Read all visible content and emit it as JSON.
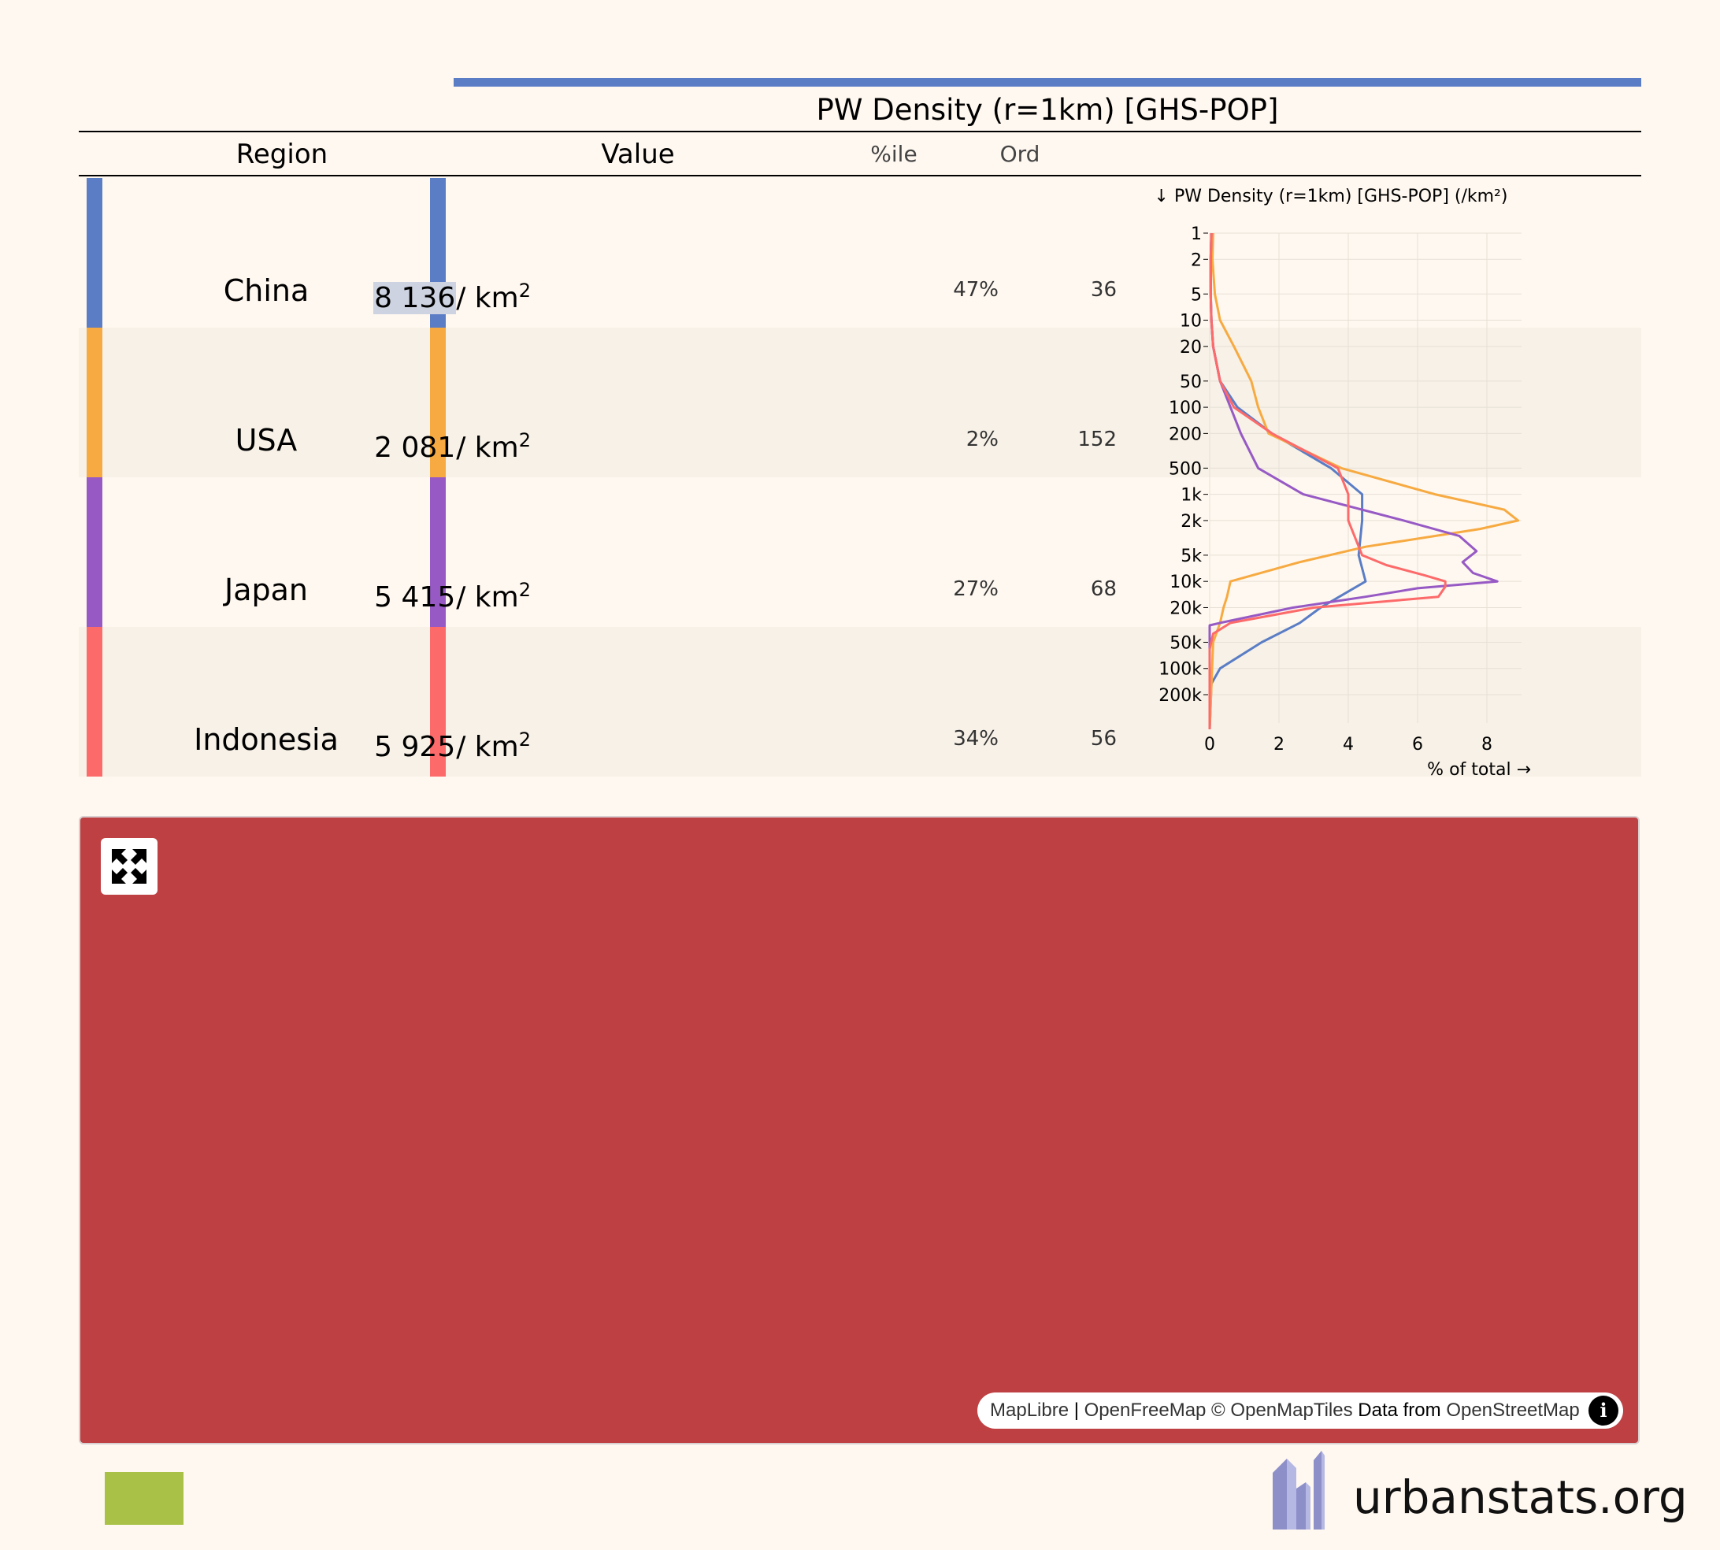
{
  "table": {
    "statistic": "PW Density (r=1km) [GHS-POP]",
    "columns": {
      "region": "Region",
      "value": "Value",
      "percentile": "%ile",
      "ordinal": "Ord"
    },
    "unit": "/ km",
    "unit_exp": "2",
    "rows": [
      {
        "region": "China",
        "value": "8 136",
        "percentile": "47%",
        "ordinal": "36",
        "color": "#5a7dc5",
        "highlighted": true
      },
      {
        "region": "USA",
        "value": "2 081",
        "percentile": "2%",
        "ordinal": "152",
        "color": "#f7aa41",
        "highlighted": false
      },
      {
        "region": "Japan",
        "value": "5 415",
        "percentile": "27%",
        "ordinal": "68",
        "color": "#975ac5",
        "highlighted": false
      },
      {
        "region": "Indonesia",
        "value": "5 925",
        "percentile": "34%",
        "ordinal": "56",
        "color": "#fd6a6a",
        "highlighted": false
      }
    ]
  },
  "chart_data": {
    "type": "line",
    "title": "↓ PW Density (r=1km) [GHS-POP] (/km²)",
    "xlabel": "% of total →",
    "ylabel": "",
    "y_scale": "log",
    "y_reversed": true,
    "xlim": [
      0,
      9
    ],
    "ylim": [
      1,
      500000
    ],
    "x_ticks": [
      0,
      2,
      4,
      6,
      8
    ],
    "y_ticks": [
      1,
      2,
      5,
      10,
      20,
      50,
      100,
      200,
      500,
      1000,
      2000,
      5000,
      10000,
      20000,
      50000,
      100000,
      200000
    ],
    "y_tick_labels": [
      "1",
      "2",
      "5",
      "10",
      "20",
      "50",
      "100",
      "200",
      "500",
      "1k",
      "2k",
      "5k",
      "10k",
      "20k",
      "50k",
      "100k",
      "200k"
    ],
    "grid": true,
    "series": [
      {
        "color": "#5a7dc5",
        "points": [
          [
            0.05,
            1
          ],
          [
            0.03,
            2
          ],
          [
            0.03,
            5
          ],
          [
            0.05,
            10
          ],
          [
            0.1,
            20
          ],
          [
            0.3,
            50
          ],
          [
            0.8,
            100
          ],
          [
            1.8,
            200
          ],
          [
            3.5,
            500
          ],
          [
            4.4,
            1000
          ],
          [
            4.4,
            2000
          ],
          [
            4.3,
            5000
          ],
          [
            4.5,
            10000
          ],
          [
            3.2,
            20000
          ],
          [
            2.6,
            30000
          ],
          [
            1.5,
            50000
          ],
          [
            0.3,
            100000
          ],
          [
            0.05,
            150000
          ],
          [
            0.0,
            500000
          ]
        ]
      },
      {
        "color": "#f7aa41",
        "points": [
          [
            0.1,
            1
          ],
          [
            0.08,
            2
          ],
          [
            0.15,
            5
          ],
          [
            0.3,
            10
          ],
          [
            0.7,
            20
          ],
          [
            1.2,
            50
          ],
          [
            1.4,
            100
          ],
          [
            1.7,
            200
          ],
          [
            3.8,
            500
          ],
          [
            6.5,
            1000
          ],
          [
            8.5,
            1500
          ],
          [
            8.9,
            2000
          ],
          [
            7.8,
            2500
          ],
          [
            4.5,
            4000
          ],
          [
            2.6,
            6000
          ],
          [
            0.6,
            10000
          ],
          [
            0.5,
            15000
          ],
          [
            0.4,
            20000
          ],
          [
            0.3,
            30000
          ],
          [
            0.1,
            50000
          ],
          [
            0.0,
            500000
          ]
        ]
      },
      {
        "color": "#975ac5",
        "points": [
          [
            0.05,
            1
          ],
          [
            0.03,
            2
          ],
          [
            0.03,
            5
          ],
          [
            0.05,
            10
          ],
          [
            0.1,
            20
          ],
          [
            0.3,
            50
          ],
          [
            0.6,
            100
          ],
          [
            0.9,
            200
          ],
          [
            1.4,
            500
          ],
          [
            2.7,
            1000
          ],
          [
            5.6,
            2000
          ],
          [
            7.2,
            3000
          ],
          [
            7.7,
            4500
          ],
          [
            7.3,
            6000
          ],
          [
            7.6,
            8000
          ],
          [
            8.3,
            10000
          ],
          [
            6.0,
            12000
          ],
          [
            4.5,
            15000
          ],
          [
            2.4,
            20000
          ],
          [
            0.3,
            30000
          ],
          [
            0.0,
            32000
          ],
          [
            0.0,
            500000
          ]
        ]
      },
      {
        "color": "#fd6a6a",
        "points": [
          [
            0.05,
            1
          ],
          [
            0.03,
            2
          ],
          [
            0.03,
            5
          ],
          [
            0.05,
            10
          ],
          [
            0.1,
            20
          ],
          [
            0.3,
            50
          ],
          [
            0.7,
            100
          ],
          [
            1.8,
            200
          ],
          [
            3.7,
            500
          ],
          [
            4.0,
            1000
          ],
          [
            4.0,
            2000
          ],
          [
            4.4,
            5000
          ],
          [
            5.1,
            6500
          ],
          [
            6.2,
            8500
          ],
          [
            6.8,
            10000
          ],
          [
            6.8,
            11500
          ],
          [
            6.6,
            15000
          ],
          [
            3.0,
            20000
          ],
          [
            0.6,
            30000
          ],
          [
            0.1,
            40000
          ],
          [
            0.0,
            60000
          ],
          [
            0.0,
            500000
          ]
        ]
      }
    ]
  },
  "map": {
    "fullscreen_icon": "fullscreen-icon",
    "attribution": {
      "maplibre": "MapLibre",
      "sep": " | ",
      "openfreemap": "OpenFreeMap",
      "copy": " © ",
      "openmaptiles": "OpenMapTiles",
      "data_from": " Data from ",
      "osm": "OpenStreetMap",
      "info_icon": "info-icon"
    }
  },
  "footer": {
    "brand": "urbanstats.org",
    "logo_icon": "urbanstats-logo-icon"
  }
}
